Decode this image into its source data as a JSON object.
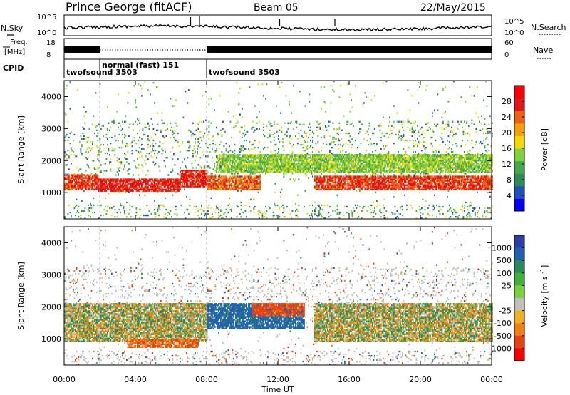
{
  "header": {
    "station": "Prince George (fitACF)",
    "beam": "Beam 05",
    "date": "22/May/2015"
  },
  "colors": {
    "power_scale": [
      "#0000ff",
      "#2050c0",
      "#2f8a5a",
      "#45a84a",
      "#7fd23a",
      "#f5d800",
      "#f5a000",
      "#f06010",
      "#e01818",
      "#ff0000"
    ],
    "velocity_scale": [
      "#2c3ea8",
      "#2060b0",
      "#2a8a5a",
      "#42b03a",
      "#78d040",
      "#c0c0b8",
      "#f0b020",
      "#f08010",
      "#e84010",
      "#ff0000"
    ],
    "grey": "#c0c0b8"
  },
  "top_panel": {
    "nsky_label": "N.Sky",
    "nsearch_label": "N.Search",
    "nsky_ticks": [
      "10^5",
      "10^0"
    ],
    "nsearch_ticks": [
      "10^5",
      "10^0"
    ],
    "freq_label_1": "Freq.",
    "freq_label_2": "[MHz]",
    "freq_ticks": [
      "18",
      "8"
    ],
    "nave_label": "Nave",
    "nave_ticks": [
      "60",
      "0"
    ],
    "cpid_label": "CPID",
    "modes": [
      {
        "name": "twofsound 3503",
        "start": 0,
        "end": 2
      },
      {
        "name": "normal (fast) 151",
        "start": 2,
        "end": 8
      },
      {
        "name": "twofsound 3503",
        "start": 8,
        "end": 24
      }
    ]
  },
  "chart_data": [
    {
      "type": "heatmap",
      "title": "",
      "quantity": "Power",
      "xlabel": "",
      "ylabel": "Slant Range [km]",
      "xlim": [
        0,
        24
      ],
      "ylim": [
        180,
        4500
      ],
      "x_ticks": [
        0,
        4,
        8,
        12,
        16,
        20,
        24
      ],
      "y_ticks": [
        1000,
        2000,
        3000,
        4000
      ],
      "colorbar": {
        "label": "Power [dB]",
        "range": [
          0,
          32
        ],
        "ticks": [
          4,
          8,
          12,
          16,
          20,
          24,
          28
        ]
      },
      "features": [
        {
          "t_start": 0.0,
          "t_end": 1.9,
          "range_km": [
            1050,
            1550
          ],
          "power_db": 26
        },
        {
          "t_start": 1.9,
          "t_end": 6.5,
          "range_km": [
            1000,
            1400
          ],
          "power_db": 28
        },
        {
          "t_start": 6.5,
          "t_end": 8.0,
          "range_km": [
            1150,
            1700
          ],
          "power_db": 28
        },
        {
          "t_start": 8.0,
          "t_end": 11.0,
          "range_km": [
            1050,
            1500
          ],
          "power_db": 24
        },
        {
          "t_start": 14.0,
          "t_end": 24.0,
          "range_km": [
            1050,
            1500
          ],
          "power_db": 26
        },
        {
          "t_start": 8.5,
          "t_end": 24.0,
          "range_km": [
            1600,
            2200
          ],
          "power_db": 14
        }
      ]
    },
    {
      "type": "heatmap",
      "title": "",
      "quantity": "Velocity",
      "xlabel": "Time UT",
      "ylabel": "Slant Range [km]",
      "xlim": [
        0,
        24
      ],
      "ylim": [
        180,
        4500
      ],
      "x_ticks": [
        0,
        4,
        8,
        12,
        16,
        20,
        24
      ],
      "x_tick_labels": [
        "00:00",
        "04:00",
        "08:00",
        "12:00",
        "16:00",
        "20:00",
        "00:00"
      ],
      "y_ticks": [
        1000,
        2000,
        3000,
        4000
      ],
      "colorbar": {
        "label": "Velocity [m s^-1]",
        "ticks": [
          1000,
          500,
          100,
          25,
          -25,
          -100,
          -500,
          -1000
        ]
      },
      "features": [
        {
          "t_start": 0.0,
          "t_end": 8.0,
          "range_km": [
            900,
            2100
          ],
          "velocity": 0
        },
        {
          "t_start": 3.5,
          "t_end": 7.5,
          "range_km": [
            700,
            950
          ],
          "velocity": -300
        },
        {
          "t_start": 8.0,
          "t_end": 13.5,
          "range_km": [
            1300,
            2100
          ],
          "velocity": 400
        },
        {
          "t_start": 10.5,
          "t_end": 13.5,
          "range_km": [
            1700,
            2100
          ],
          "velocity": -400
        },
        {
          "t_start": 14.0,
          "t_end": 24.0,
          "range_km": [
            900,
            2100
          ],
          "velocity": 0
        }
      ]
    }
  ]
}
